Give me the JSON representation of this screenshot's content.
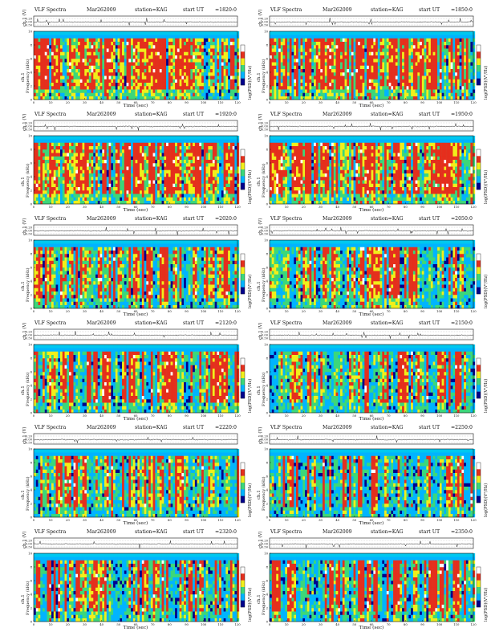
{
  "figure": {
    "header": {
      "title": "VLF Spectra",
      "date": "Mar262009",
      "station": "station=KAG",
      "start_label": "start  UT"
    },
    "labels": {
      "ch_axis": "ch.1 (V)",
      "ch_ticks": [
        "0.20",
        "0.00",
        "-0.50"
      ],
      "freq_axis_line1": "ch.1",
      "freq_axis_line2": "Frequency (kHz)",
      "freq_ticks": [
        "0",
        "2",
        "4",
        "6",
        "8",
        "10"
      ],
      "time_axis": "Time (sec)",
      "time_ticks": [
        "0",
        "10",
        "20",
        "30",
        "40",
        "50",
        "60",
        "70",
        "80",
        "90",
        "100",
        "110",
        "120"
      ],
      "colorbar_label": "log(PSD)(V²/Hz)"
    },
    "panels": [
      {
        "start_ut": "=1820:0"
      },
      {
        "start_ut": "=1850:0"
      },
      {
        "start_ut": "=1920:0"
      },
      {
        "start_ut": "=1950:0"
      },
      {
        "start_ut": "=2020:0"
      },
      {
        "start_ut": "=2050:0"
      },
      {
        "start_ut": "=2120:0"
      },
      {
        "start_ut": "=2150:0"
      },
      {
        "start_ut": "=2220:0"
      },
      {
        "start_ut": "=2250:0"
      },
      {
        "start_ut": "=2320:0"
      },
      {
        "start_ut": "=2350:0"
      }
    ]
  },
  "chart_data": {
    "type": "heatmap",
    "title": "VLF Spectra",
    "xlabel": "Time (sec)",
    "ylabel": "Frequency (kHz)",
    "xlim": [
      0,
      120
    ],
    "ylim": [
      0,
      10
    ],
    "colorbar": "log(PSD)(V²/Hz)",
    "colors": {
      "low": "#00008b",
      "mid_low": "#00b4ff",
      "mid": "#3cd77a",
      "high": "#f2ef1a",
      "max": "#e52f1d",
      "saturate": "#ffffff"
    },
    "panels": [
      {
        "start_ut": "=1820:0",
        "activity": 0.85
      },
      {
        "start_ut": "=1850:0",
        "activity": 0.8
      },
      {
        "start_ut": "=1920:0",
        "activity": 0.8
      },
      {
        "start_ut": "=1950:0",
        "activity": 0.75
      },
      {
        "start_ut": "=2020:0",
        "activity": 0.55
      },
      {
        "start_ut": "=2050:0",
        "activity": 0.5
      },
      {
        "start_ut": "=2120:0",
        "activity": 0.6
      },
      {
        "start_ut": "=2150:0",
        "activity": 0.55
      },
      {
        "start_ut": "=2220:0",
        "activity": 0.45
      },
      {
        "start_ut": "=2250:0",
        "activity": 0.38
      },
      {
        "start_ut": "=2320:0",
        "activity": 0.45
      },
      {
        "start_ut": "=2350:0",
        "activity": 0.55
      }
    ]
  }
}
